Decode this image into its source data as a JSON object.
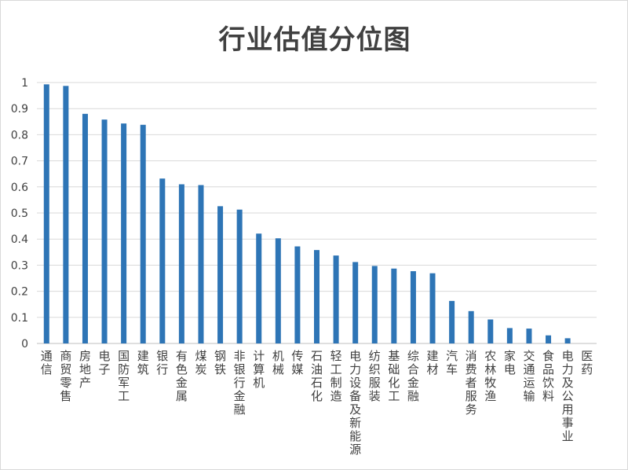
{
  "chart_data": {
    "type": "bar",
    "title": "行业估值分位图",
    "xlabel": "",
    "ylabel": "",
    "ylim": [
      0,
      1
    ],
    "yticks": [
      "0",
      "0.1",
      "0.2",
      "0.3",
      "0.4",
      "0.5",
      "0.6",
      "0.7",
      "0.8",
      "0.9",
      "1"
    ],
    "grid": true,
    "legend": "none",
    "bar_color": "#2E75B6",
    "categories": [
      "通信",
      "商贸零售",
      "房地产",
      "电子",
      "国防军工",
      "建筑",
      "银行",
      "有色金属",
      "煤炭",
      "钢铁",
      "非银行金融",
      "计算机",
      "机械",
      "传媒",
      "石油石化",
      "轻工制造",
      "电力设备及新能源",
      "纺织服装",
      "基础化工",
      "综合金融",
      "建材",
      "汽车",
      "消费者服务",
      "农林牧渔",
      "家电",
      "交通运输",
      "食品饮料",
      "电力及公用事业",
      "医药"
    ],
    "values": [
      0.993,
      0.987,
      0.88,
      0.858,
      0.843,
      0.838,
      0.632,
      0.61,
      0.607,
      0.526,
      0.513,
      0.421,
      0.403,
      0.372,
      0.358,
      0.337,
      0.312,
      0.297,
      0.287,
      0.277,
      0.269,
      0.163,
      0.124,
      0.092,
      0.059,
      0.057,
      0.031,
      0.02,
      0.0
    ]
  }
}
